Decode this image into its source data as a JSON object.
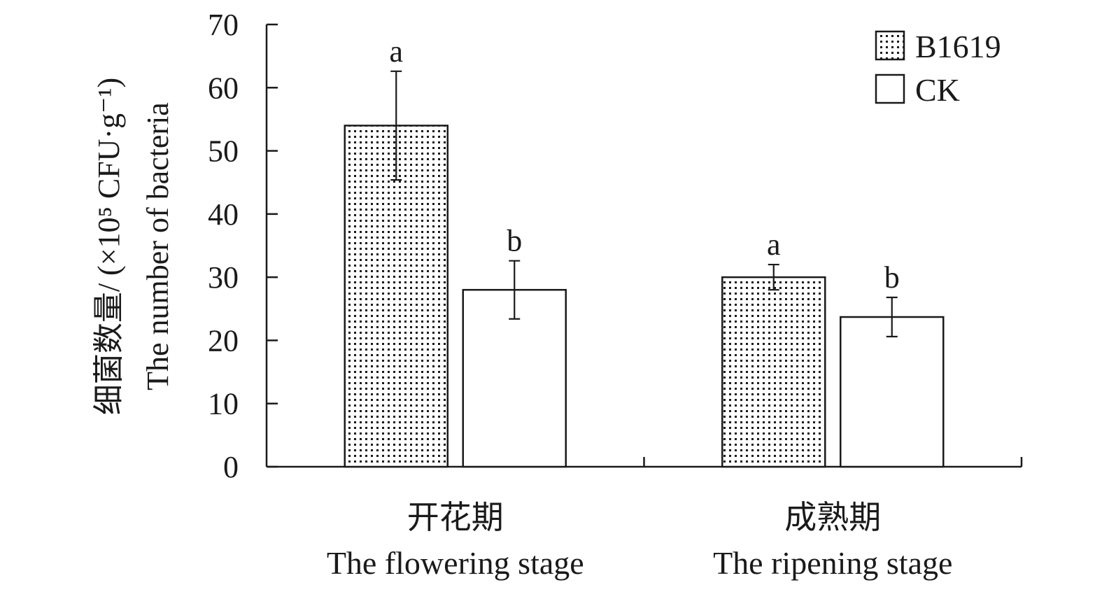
{
  "chart_data": {
    "type": "bar",
    "categories": [
      {
        "zh": "开花期",
        "en": "The flowering stage"
      },
      {
        "zh": "成熟期",
        "en": "The ripening stage"
      }
    ],
    "series": [
      {
        "name": "B1619",
        "pattern": "dotted",
        "values": [
          54,
          30
        ],
        "errors": [
          8.6,
          2.0
        ],
        "significance": [
          "a",
          "a"
        ]
      },
      {
        "name": "CK",
        "pattern": "hollow",
        "values": [
          28,
          23.7
        ],
        "errors": [
          4.6,
          3.1
        ],
        "significance": [
          "b",
          "b"
        ]
      }
    ],
    "ylabel_zh": "细菌数量/ (×10⁵ CFU·g⁻¹)",
    "ylabel_en": "The number of bacteria",
    "ylim": [
      0,
      70
    ],
    "yticks": [
      "0",
      "10",
      "20",
      "30",
      "40",
      "50",
      "60",
      "70"
    ],
    "legend_position": "top-right",
    "grid": false,
    "colors": {
      "axis": "#1a1a1a",
      "bar_stroke": "#1a1a1a",
      "bar_fill": "#ffffff",
      "dot": "#1a1a1a"
    }
  }
}
